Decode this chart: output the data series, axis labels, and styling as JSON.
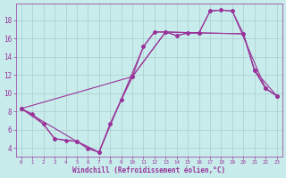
{
  "xlabel": "Windchill (Refroidissement éolien,°C)",
  "background_color": "#c8ecec",
  "line_color": "#993399",
  "grid_color": "#aacccc",
  "xlim": [
    -0.5,
    23.5
  ],
  "ylim": [
    3.0,
    19.8
  ],
  "yticks": [
    4,
    6,
    8,
    10,
    12,
    14,
    16,
    18
  ],
  "xticks": [
    0,
    1,
    2,
    3,
    4,
    5,
    6,
    7,
    8,
    9,
    10,
    11,
    12,
    13,
    14,
    15,
    16,
    17,
    18,
    19,
    20,
    21,
    22,
    23
  ],
  "line1_x": [
    0,
    1,
    2,
    3,
    4,
    5,
    6,
    7,
    8,
    9,
    10,
    11,
    12,
    13,
    14,
    15,
    16,
    17,
    18,
    19,
    20,
    21,
    22,
    23
  ],
  "line1_y": [
    8.3,
    7.7,
    6.6,
    5.0,
    4.8,
    4.7,
    3.9,
    3.5,
    6.6,
    9.3,
    11.8,
    15.1,
    16.7,
    16.7,
    16.3,
    16.6,
    16.6,
    19.0,
    19.1,
    19.0,
    16.5,
    12.5,
    10.5,
    9.7
  ],
  "line2_x": [
    0,
    2,
    3,
    5,
    7,
    9,
    11,
    12,
    13,
    14,
    15,
    16,
    17,
    18,
    19,
    22,
    23
  ],
  "line2_y": [
    8.3,
    6.6,
    5.0,
    4.7,
    3.5,
    9.3,
    15.1,
    16.7,
    16.7,
    16.3,
    16.6,
    16.6,
    19.0,
    19.1,
    19.0,
    10.5,
    9.7
  ],
  "line3_x": [
    0,
    10,
    13,
    16,
    20,
    21,
    23
  ],
  "line3_y": [
    8.3,
    11.8,
    16.7,
    16.6,
    16.5,
    12.5,
    9.7
  ],
  "line4_x": [
    0,
    5,
    7,
    8,
    10,
    13,
    16,
    20,
    21,
    22,
    23
  ],
  "line4_y": [
    8.3,
    4.7,
    3.5,
    6.6,
    11.8,
    16.7,
    16.6,
    16.5,
    12.5,
    10.5,
    9.7
  ]
}
